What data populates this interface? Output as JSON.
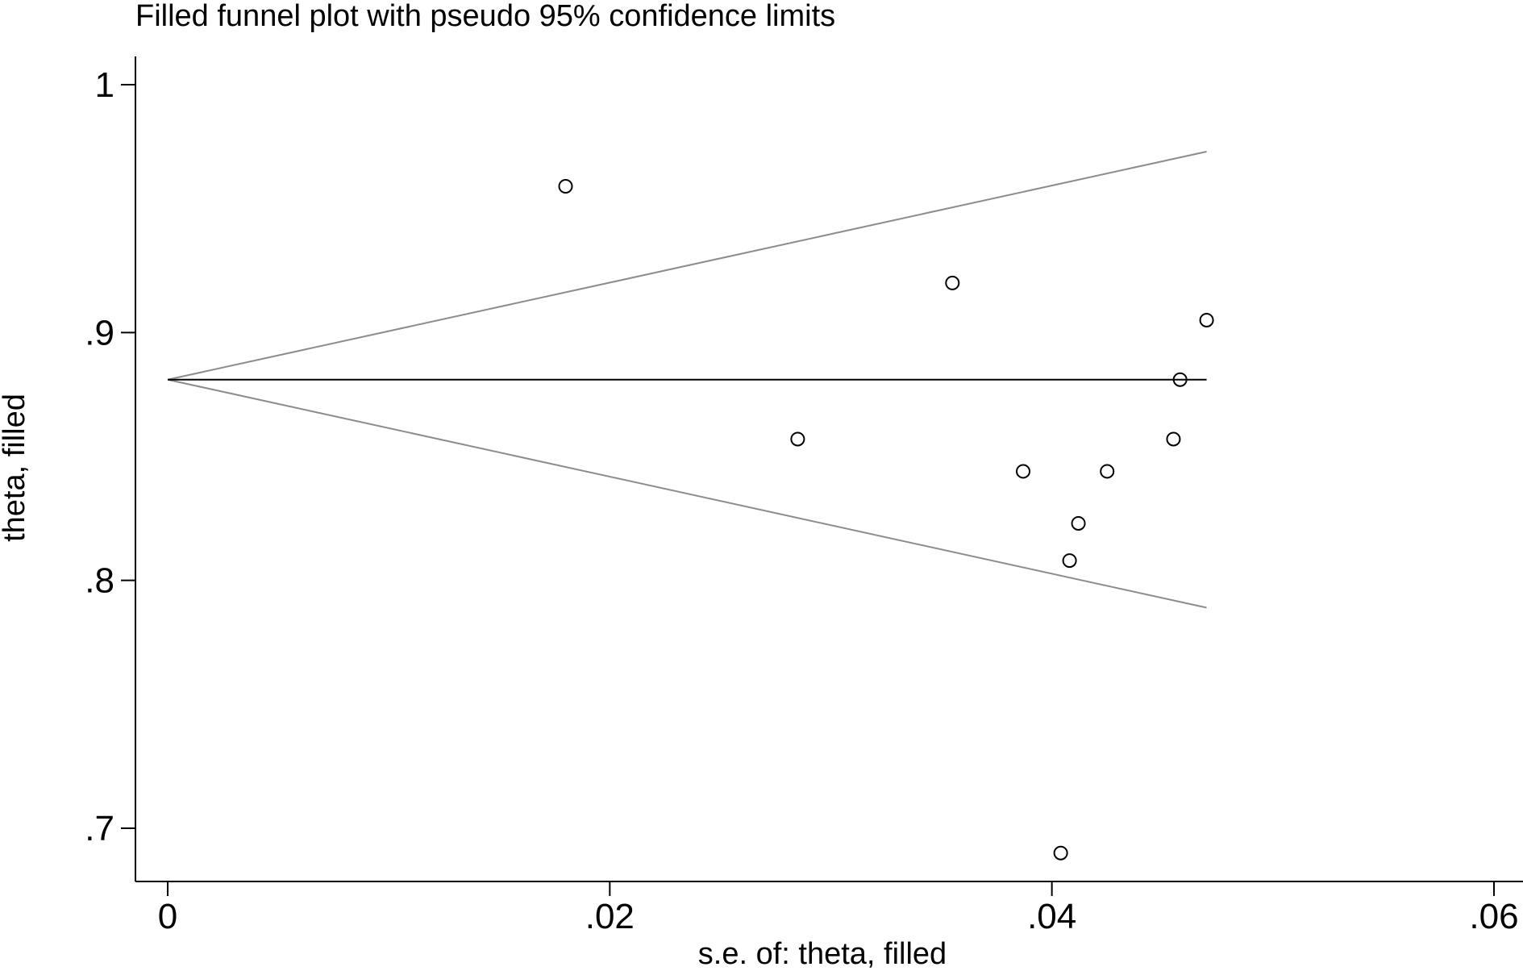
{
  "chart_data": {
    "type": "scatter",
    "title": "Filled funnel plot with pseudo 95% confidence limits",
    "xlabel": "s.e. of: theta, filled",
    "ylabel": "theta, filled",
    "xlim": [
      0,
      0.06
    ],
    "ylim": [
      0.685,
      1.0
    ],
    "x_ticks": [
      0,
      0.02,
      0.04,
      0.06
    ],
    "x_tick_labels": [
      "0",
      ".02",
      ".04",
      ".06"
    ],
    "y_ticks": [
      0.7,
      0.8,
      0.9,
      1.0
    ],
    "y_tick_labels": [
      ".7",
      ".8",
      ".9",
      "1"
    ],
    "grid": false,
    "pooled_estimate": 0.881,
    "funnel_max_se": 0.047,
    "funnel_upper_end": 0.973,
    "funnel_lower_end": 0.789,
    "marker": "hollow-circle",
    "points": [
      {
        "x": 0.018,
        "y": 0.959
      },
      {
        "x": 0.0285,
        "y": 0.857
      },
      {
        "x": 0.0355,
        "y": 0.92
      },
      {
        "x": 0.0387,
        "y": 0.844
      },
      {
        "x": 0.0404,
        "y": 0.69
      },
      {
        "x": 0.0408,
        "y": 0.808
      },
      {
        "x": 0.0412,
        "y": 0.823
      },
      {
        "x": 0.0425,
        "y": 0.844
      },
      {
        "x": 0.0455,
        "y": 0.857
      },
      {
        "x": 0.0458,
        "y": 0.881
      },
      {
        "x": 0.047,
        "y": 0.905
      }
    ],
    "colors": {
      "points": "#000000",
      "funnel_limits": "#8c8c8c",
      "pooled_line": "#000000",
      "axes": "#000000"
    }
  }
}
